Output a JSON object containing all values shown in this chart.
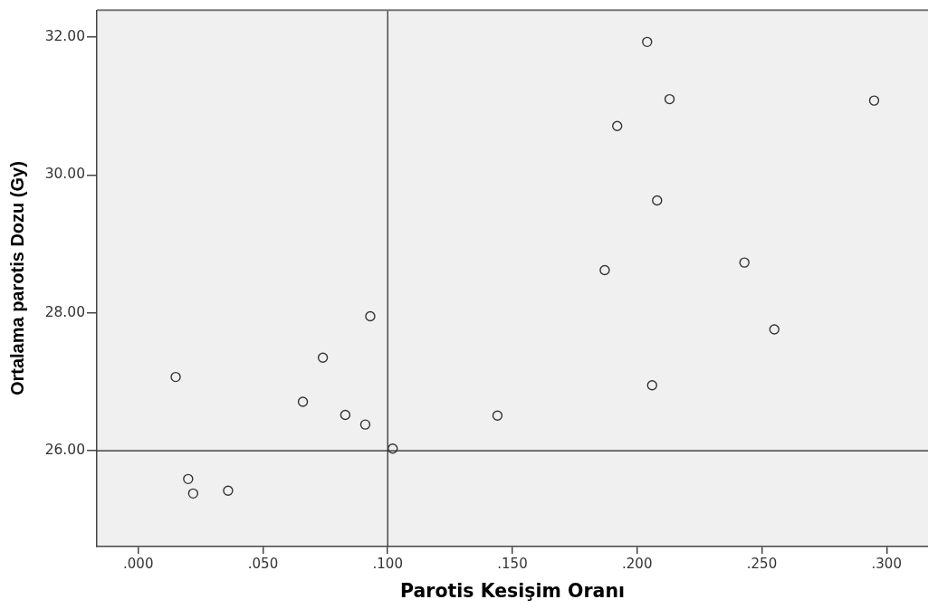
{
  "chart_data": {
    "type": "scatter",
    "xlabel": "Parotis Kesişim Oranı",
    "ylabel": "Ortalama parotis Dozu (Gy)",
    "x": [
      0.204,
      0.213,
      0.295,
      0.192,
      0.208,
      0.187,
      0.243,
      0.255,
      0.206,
      0.144,
      0.093,
      0.074,
      0.015,
      0.066,
      0.083,
      0.091,
      0.102,
      0.02,
      0.022,
      0.036
    ],
    "values": [
      31.93,
      31.1,
      31.08,
      30.71,
      29.63,
      28.62,
      28.73,
      27.76,
      26.95,
      26.51,
      27.95,
      27.35,
      27.07,
      26.71,
      26.52,
      26.38,
      26.03,
      25.59,
      25.38,
      25.42
    ],
    "color": "#333333",
    "marker": "circle",
    "xlim": [
      -0.0166,
      0.3166
    ],
    "ylim": [
      24.61,
      32.39
    ],
    "xticks": [
      {
        "value": 0,
        "label": ".000"
      },
      {
        "value": 0.05,
        "label": ".050"
      },
      {
        "value": 0.1,
        "label": ".100"
      },
      {
        "value": 0.15,
        "label": ".150"
      },
      {
        "value": 0.2,
        "label": ".200"
      },
      {
        "value": 0.25,
        "label": ".250"
      },
      {
        "value": 0.3,
        "label": ".300"
      }
    ],
    "yticks": [
      {
        "value": 26,
        "label": "26.00"
      },
      {
        "value": 28,
        "label": "28.00"
      },
      {
        "value": 30,
        "label": "30.00"
      },
      {
        "value": 32,
        "label": "32.00"
      }
    ],
    "ref_lines": [
      {
        "axis": "x",
        "value": 0.1,
        "color": "#333333"
      },
      {
        "axis": "y",
        "value": 26,
        "color": "#222222"
      }
    ],
    "grid": false,
    "legend": false
  }
}
